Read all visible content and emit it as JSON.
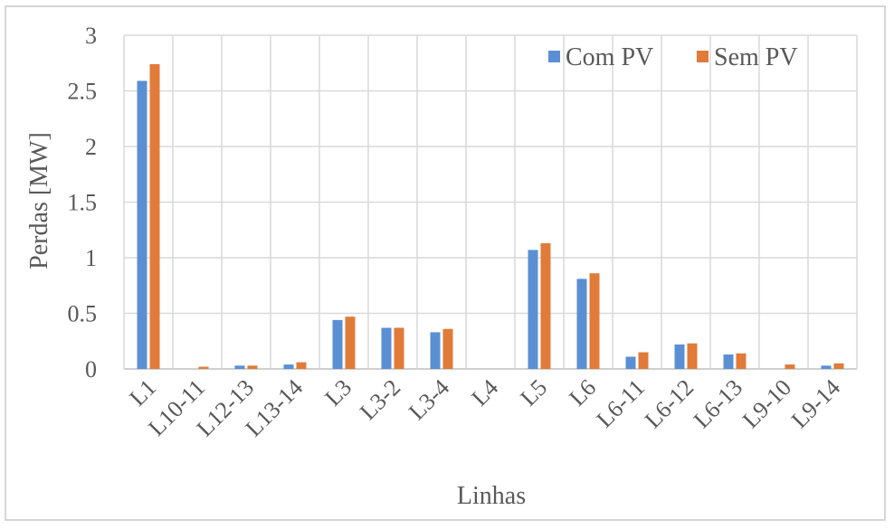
{
  "chart_data": {
    "type": "bar",
    "title": "",
    "xlabel": "Linhas",
    "ylabel": "Perdas [MW]",
    "ylim": [
      0,
      3
    ],
    "yticks": [
      "0",
      "0.5",
      "1",
      "1.5",
      "2",
      "2.5",
      "3"
    ],
    "grid": true,
    "legend_position": "top-right",
    "categories": [
      "L1",
      "L10-11",
      "L12-13",
      "L13-14",
      "L3",
      "L3-2",
      "L3-4",
      "L4",
      "L5",
      "L6",
      "L6-11",
      "L6-12",
      "L6-13",
      "L9-10",
      "L9-14"
    ],
    "series": [
      {
        "name": "Com PV",
        "color": "#5b8fd4",
        "values": [
          2.59,
          0.0,
          0.03,
          0.04,
          0.44,
          0.37,
          0.33,
          0.0,
          1.07,
          0.81,
          0.11,
          0.22,
          0.13,
          0.0,
          0.03
        ]
      },
      {
        "name": "Sem PV",
        "color": "#e07b39",
        "values": [
          2.74,
          0.02,
          0.03,
          0.06,
          0.47,
          0.37,
          0.36,
          0.0,
          1.13,
          0.86,
          0.15,
          0.23,
          0.14,
          0.04,
          0.05
        ]
      }
    ]
  }
}
